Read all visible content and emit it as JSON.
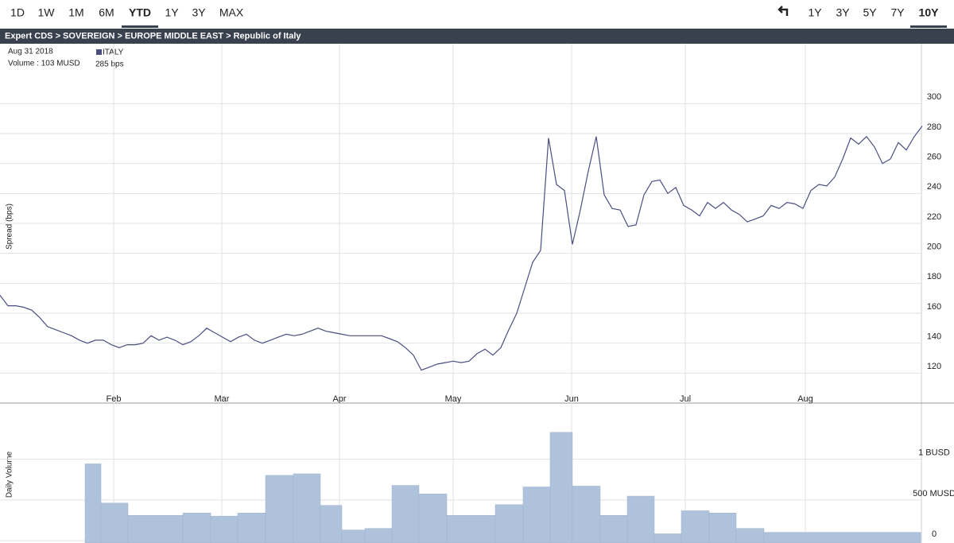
{
  "toolbar": {
    "left": [
      {
        "label": "1D"
      },
      {
        "label": "1W"
      },
      {
        "label": "1M"
      },
      {
        "label": "6M"
      },
      {
        "label": "YTD",
        "selected": true
      },
      {
        "label": "1Y"
      },
      {
        "label": "3Y"
      },
      {
        "label": "MAX"
      }
    ],
    "right": [
      {
        "label": "1Y"
      },
      {
        "label": "3Y"
      },
      {
        "label": "5Y"
      },
      {
        "label": "7Y"
      },
      {
        "label": "10Y",
        "selected": true
      }
    ]
  },
  "breadcrumb": "Expert CDS > SOVEREIGN > EUROPE MIDDLE EAST > Republic of Italy",
  "info": {
    "date": "Aug 31 2018",
    "volume": "Volume : 103 MUSD",
    "legend_name": "ITALY",
    "legend_value": "285 bps"
  },
  "chart_data": [
    {
      "type": "line",
      "ylabel": "Spread (bps)",
      "color": "#4b4f80",
      "grid": true,
      "xlim": [
        0,
        116
      ],
      "ylim": [
        100,
        340
      ],
      "yticks": [
        120,
        140,
        160,
        180,
        200,
        220,
        240,
        260,
        280,
        300
      ],
      "xticks": [
        {
          "value": 14.3,
          "label": "Feb"
        },
        {
          "value": 27.9,
          "label": "Mar"
        },
        {
          "value": 42.7,
          "label": "Apr"
        },
        {
          "value": 57,
          "label": "May"
        },
        {
          "value": 71.9,
          "label": "Jun"
        },
        {
          "value": 86.2,
          "label": "Jul"
        },
        {
          "value": 101.3,
          "label": "Aug"
        }
      ],
      "series": [
        {
          "name": "ITALY",
          "color": "#4b4f80",
          "values": [
            172,
            165,
            165,
            164,
            162,
            157,
            151,
            149,
            147,
            145,
            142,
            140,
            142,
            142,
            139,
            137,
            139,
            139,
            140,
            145,
            142,
            144,
            142,
            139,
            141,
            145,
            150,
            147,
            144,
            141,
            144,
            146,
            142,
            140,
            142,
            144,
            146,
            145,
            146,
            148,
            150,
            148,
            147,
            146,
            145,
            145,
            145,
            145,
            145,
            143,
            141,
            137,
            132,
            122,
            124,
            126,
            127,
            128,
            127,
            128,
            133,
            136,
            132,
            137,
            149,
            160,
            177,
            194,
            202,
            277,
            246,
            242,
            206,
            229,
            255,
            278,
            239,
            230,
            229,
            218,
            219,
            239,
            248,
            249,
            240,
            244,
            232,
            229,
            225,
            234,
            230,
            234,
            229,
            226,
            221,
            223,
            225,
            232,
            230,
            234,
            233,
            230,
            242,
            246,
            245,
            251,
            263,
            277,
            273,
            278,
            271,
            260,
            263,
            274,
            269,
            278,
            285
          ]
        }
      ]
    },
    {
      "type": "histogram",
      "ylabel": "Daily Volume",
      "color": "#aec2dc",
      "grid": true,
      "xlim": [
        0,
        116
      ],
      "ylim": [
        -28,
        1689
      ],
      "yticks": [
        0,
        {
          "value": 500,
          "label": "500 MUSD"
        },
        {
          "value": 1000,
          "label": "1 BUSD"
        }
      ],
      "bins": [
        10.7,
        12.7,
        16.1,
        23,
        26.5,
        29.9,
        33.4,
        36.9,
        40.3,
        43,
        45.9,
        49.3,
        52.7,
        56.2,
        62.3,
        65.8,
        69.2,
        72,
        75.5,
        78.9,
        82.3,
        85.7,
        89.2,
        92.6,
        96.1,
        115.8
      ],
      "values": [
        943,
        462,
        311,
        340,
        302,
        340,
        802,
        821,
        434,
        132,
        151,
        679,
        575,
        311,
        443,
        660,
        1330,
        670,
        311,
        547,
        85,
        368,
        340,
        151,
        103
      ]
    }
  ]
}
